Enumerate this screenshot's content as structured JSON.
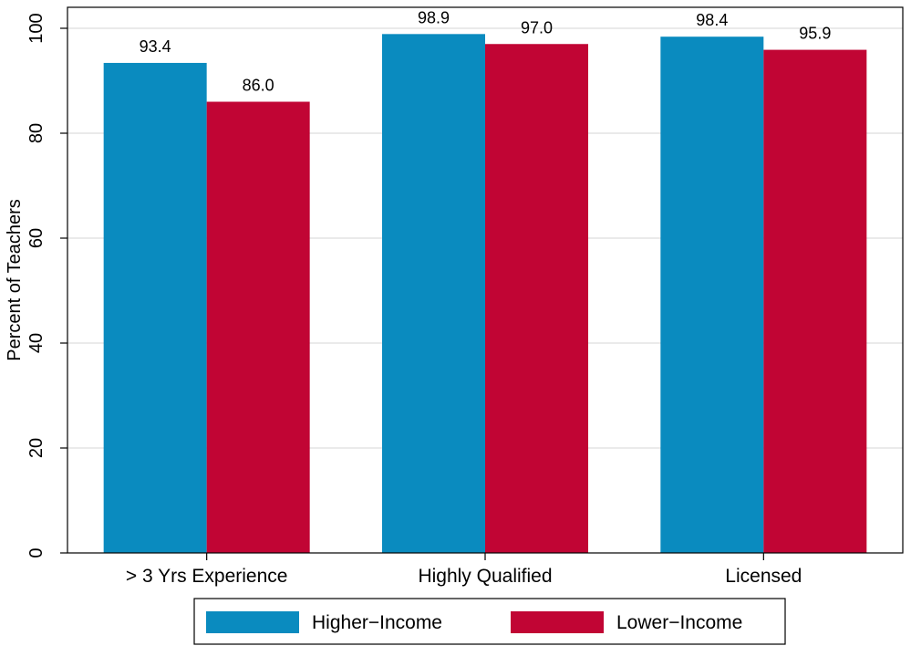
{
  "chart_data": {
    "type": "bar",
    "title": "",
    "xlabel": "",
    "ylabel": "Percent of Teachers",
    "ylim": [
      0,
      104
    ],
    "yticks": [
      0,
      20,
      40,
      60,
      80,
      100
    ],
    "grid": true,
    "categories": [
      "> 3 Yrs Experience",
      "Highly Qualified",
      "Licensed"
    ],
    "series": [
      {
        "name": "Higher−Income",
        "color": "#0a8bbf",
        "values": [
          93.4,
          98.9,
          98.4
        ],
        "labels": [
          "93.4",
          "98.9",
          "98.4"
        ]
      },
      {
        "name": "Lower−Income",
        "color": "#c10534",
        "values": [
          86.0,
          97.0,
          95.9
        ],
        "labels": [
          "86.0",
          "97.0",
          "95.9"
        ]
      }
    ],
    "legend_position": "bottom"
  }
}
